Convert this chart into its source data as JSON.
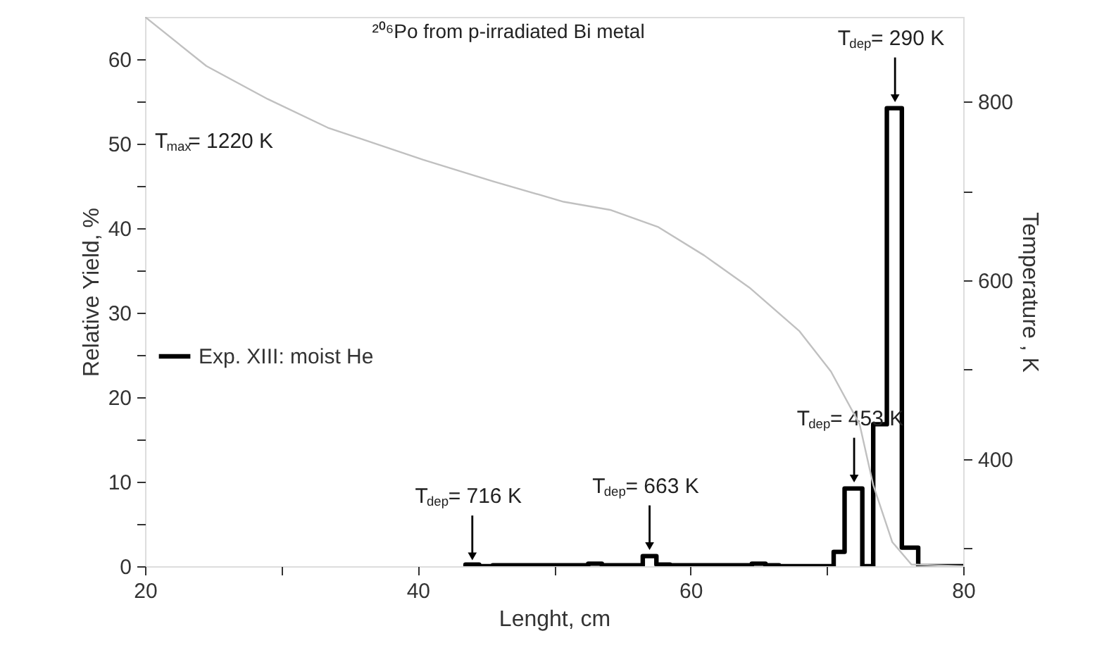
{
  "chart_data": {
    "type": "step",
    "title": "²⁰⁶Po from p-irradiated Bi metal",
    "xlabel": "Lenght, cm",
    "ylabel": "Relative Yield, %",
    "y2label": "Temperature , K",
    "xlim": [
      20,
      80
    ],
    "xticks": [
      20,
      {
        "value": 30,
        "label": null
      },
      40,
      {
        "value": 50,
        "label": null
      },
      60,
      {
        "value": 70,
        "label": null
      },
      80
    ],
    "ylim": [
      0,
      65
    ],
    "yticks": [
      0,
      {
        "value": 5,
        "label": null
      },
      10,
      {
        "value": 15,
        "label": null
      },
      20,
      {
        "value": 25,
        "label": null
      },
      30,
      {
        "value": 35,
        "label": null
      },
      40,
      {
        "value": 45,
        "label": null
      },
      50,
      {
        "value": 55,
        "label": null
      },
      60
    ],
    "y2lim": [
      280,
      895
    ],
    "y2ticks": [
      {
        "value": 300,
        "label": null
      },
      400,
      {
        "value": 500,
        "label": null
      },
      600,
      {
        "value": 700,
        "label": null
      },
      800
    ],
    "grid": false,
    "legend": "left",
    "marker": "none",
    "series": [
      {
        "name": "Exp. XIII: moist He",
        "color": "#000000",
        "x": [
          43.5,
          44.5,
          45.5,
          52.5,
          53.5,
          54.5,
          56.5,
          57.5,
          58.5,
          64.5,
          65.5,
          66.5,
          70.5,
          71.3,
          72.6,
          73.4,
          74.4,
          75.5,
          76.7,
          80
        ],
        "values": [
          0,
          0.2,
          0,
          0.1,
          0.3,
          0.1,
          0.1,
          1.2,
          0.2,
          0.1,
          0.3,
          0.1,
          0,
          1.7,
          9.2,
          0,
          16.8,
          54.2,
          2.2,
          0
        ]
      },
      {
        "color": "#c0c0c0",
        "type": "line",
        "axis": "y2",
        "x": [
          20,
          24.5,
          29,
          33.4,
          40.4,
          45.5,
          50.7,
          54.1,
          57.6,
          61,
          64.4,
          68,
          70.3,
          72.4,
          73.4,
          74.8,
          76.2,
          80
        ],
        "values": [
          895,
          840,
          803,
          771,
          735,
          711,
          688,
          679,
          660,
          628,
          591,
          543,
          498,
          439,
          371,
          307,
          282,
          280
        ]
      }
    ],
    "annotations": [
      "T$_{max}$= 1220 K",
      {
        "text": "T$_{dep}$= 716 K",
        "x": 44,
        "y": 0
      },
      {
        "text": "T$_{dep}$= 663 K",
        "x": 57,
        "y": 1.2
      },
      {
        "text": "T$_{dep}$= 453 K",
        "x": 72,
        "y": 9.2
      },
      {
        "text": "T$_{dep}$= 290 K",
        "x": 75,
        "y": 54.2
      }
    ]
  }
}
